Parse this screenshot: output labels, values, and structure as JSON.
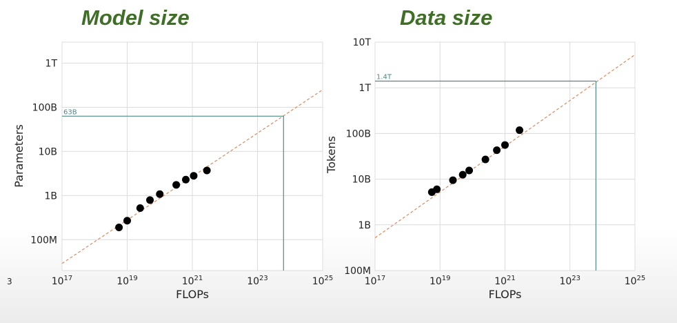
{
  "colors": {
    "title": "#3f6f26",
    "grid": "#dcdcdc",
    "fit_line": "#d98a5f",
    "projection": "#4f8a80",
    "points": "#000000"
  },
  "chart_data": [
    {
      "type": "scatter",
      "title": "Model size",
      "xlabel": "FLOPs",
      "ylabel": "Parameters",
      "x_scale": "log",
      "y_scale": "log",
      "xlim": [
        1e+17,
        1e+25
      ],
      "ylim": [
        20000000.0,
        3000000000000.0
      ],
      "grid": true,
      "x_ticks": [
        {
          "value": 1e+17,
          "base": "10",
          "exp": "17"
        },
        {
          "value": 1e+19,
          "base": "10",
          "exp": "19"
        },
        {
          "value": 1e+21,
          "base": "10",
          "exp": "21"
        },
        {
          "value": 1e+23,
          "base": "10",
          "exp": "23"
        },
        {
          "value": 1e+25,
          "base": "10",
          "exp": "25"
        }
      ],
      "y_ticks": [
        {
          "value": 100000000.0,
          "label": "100M"
        },
        {
          "value": 1000000000.0,
          "label": "1B"
        },
        {
          "value": 10000000000.0,
          "label": "10B"
        },
        {
          "value": 100000000000.0,
          "label": "100B"
        },
        {
          "value": 1000000000000.0,
          "label": "1T"
        }
      ],
      "points": [
        {
          "x": 5.6e+18,
          "y": 190000000.0
        },
        {
          "x": 1e+19,
          "y": 270000000.0
        },
        {
          "x": 2.5e+19,
          "y": 520000000.0
        },
        {
          "x": 5e+19,
          "y": 790000000.0
        },
        {
          "x": 1e+20,
          "y": 1080000000.0
        },
        {
          "x": 3.2e+20,
          "y": 1750000000.0
        },
        {
          "x": 6.3e+20,
          "y": 2300000000.0
        },
        {
          "x": 1.1e+21,
          "y": 2800000000.0
        },
        {
          "x": 2.8e+21,
          "y": 3700000000.0
        }
      ],
      "fit_line": {
        "x": [
          1e+17,
          1e+25
        ],
        "y": [
          29000000.0,
          250000000000.0
        ]
      },
      "projection": {
        "x": 6.3e+23,
        "y": 63000000000.0,
        "label": "63B"
      }
    },
    {
      "type": "scatter",
      "title": "Data size",
      "xlabel": "FLOPs",
      "ylabel": "Tokens",
      "x_scale": "log",
      "y_scale": "log",
      "xlim": [
        1e+17,
        1e+25
      ],
      "ylim": [
        100000000.0,
        10000000000000.0
      ],
      "grid": true,
      "x_ticks": [
        {
          "value": 1e+17,
          "base": "10",
          "exp": "17"
        },
        {
          "value": 1e+19,
          "base": "10",
          "exp": "19"
        },
        {
          "value": 1e+21,
          "base": "10",
          "exp": "21"
        },
        {
          "value": 1e+23,
          "base": "10",
          "exp": "23"
        },
        {
          "value": 1e+25,
          "base": "10",
          "exp": "25"
        }
      ],
      "y_ticks": [
        {
          "value": 100000000.0,
          "label": "100M"
        },
        {
          "value": 1000000000.0,
          "label": "1B"
        },
        {
          "value": 10000000000.0,
          "label": "10B"
        },
        {
          "value": 100000000000.0,
          "label": "100B"
        },
        {
          "value": 1000000000000.0,
          "label": "1T"
        },
        {
          "value": 10000000000000.0,
          "label": "10T"
        }
      ],
      "points": [
        {
          "x": 5.6e+18,
          "y": 5200000000.0
        },
        {
          "x": 8e+18,
          "y": 6000000000.0
        },
        {
          "x": 2.5e+19,
          "y": 9500000000.0
        },
        {
          "x": 5e+19,
          "y": 12500000000.0
        },
        {
          "x": 7.9e+19,
          "y": 15500000000.0
        },
        {
          "x": 2.5e+20,
          "y": 27000000000.0
        },
        {
          "x": 5.6e+20,
          "y": 43000000000.0
        },
        {
          "x": 1e+21,
          "y": 56000000000.0
        },
        {
          "x": 2.8e+21,
          "y": 118000000000.0
        }
      ],
      "fit_line": {
        "x": [
          1e+17,
          1e+25
        ],
        "y": [
          520000000.0,
          5300000000000.0
        ]
      },
      "projection": {
        "x": 6.3e+23,
        "y": 1400000000000.0,
        "label": "1.4T"
      }
    }
  ],
  "stray_label": "3"
}
